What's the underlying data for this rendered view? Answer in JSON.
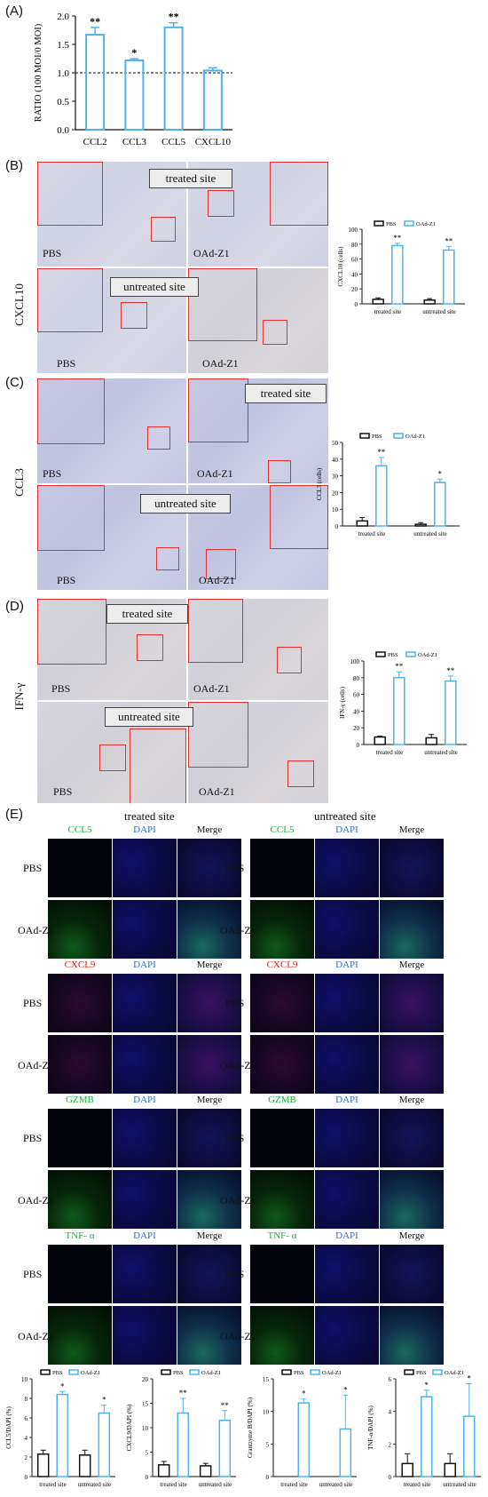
{
  "panels": {
    "A": "(A)",
    "B": "(B)",
    "C": "(C)",
    "D": "(D)",
    "E": "(E)"
  },
  "side_labels": {
    "B": "CXCL10",
    "C": "CCL3",
    "D": "IFN-γ"
  },
  "site_tags": {
    "treated": "treated site",
    "untreated": "untreated site"
  },
  "ihc_labels": {
    "pbs": "PBS",
    "oad": "OAd-Z1"
  },
  "section_e": {
    "treated_title": "treated site",
    "untreated_title": "untreated site",
    "row_pbs": "PBS",
    "row_oad": "OAd-Z1",
    "dapi": "DAPI",
    "merge": "Merge",
    "markers": [
      {
        "name": "CCL5",
        "color": "#1fae3e"
      },
      {
        "name": "CXCL9",
        "color": "#e01818"
      },
      {
        "name": "GZMB",
        "color": "#1fae3e"
      },
      {
        "name": "TNF- α",
        "color": "#1fae3e"
      }
    ],
    "dapi_color": "#2a6fd6"
  },
  "chart_data": [
    {
      "id": "A",
      "type": "bar",
      "categories": [
        "CCL2",
        "CCL3",
        "CCL5",
        "CXCL10"
      ],
      "values": [
        1.67,
        1.22,
        1.8,
        1.04
      ],
      "errors": [
        0.13,
        0.03,
        0.08,
        0.05
      ],
      "significance": [
        "**",
        "*",
        "**",
        ""
      ],
      "ylabel": "RATIO (100 MOI/0 MOI)",
      "ylim": [
        0.0,
        2.0
      ],
      "yticks": [
        "0.0",
        "0.5",
        "1.0",
        "1.5",
        "2.0"
      ],
      "reference_line": 1.0,
      "color": "#4fb3e8"
    },
    {
      "id": "B",
      "type": "bar",
      "categories": [
        "treated site",
        "untreated site"
      ],
      "series": [
        {
          "name": "PBS",
          "values": [
            6,
            5
          ],
          "errors": [
            2,
            2
          ],
          "color": "#111111"
        },
        {
          "name": "OAd-Z1",
          "values": [
            78,
            72
          ],
          "errors": [
            3,
            5
          ],
          "color": "#4fb3e8"
        }
      ],
      "significance": [
        "**",
        "**"
      ],
      "ylabel": "CXCL10 (cells)",
      "ylim": [
        0,
        100
      ],
      "yticks": [
        "0",
        "20",
        "40",
        "60",
        "80",
        "100"
      ]
    },
    {
      "id": "C",
      "type": "bar",
      "categories": [
        "treated site",
        "untreated site"
      ],
      "series": [
        {
          "name": "PBS",
          "values": [
            3,
            1
          ],
          "errors": [
            2,
            1
          ],
          "color": "#111111"
        },
        {
          "name": "OAd-Z1",
          "values": [
            36,
            26
          ],
          "errors": [
            5,
            2
          ],
          "color": "#4fb3e8"
        }
      ],
      "significance": [
        "**",
        "*"
      ],
      "ylabel": "CCL3 (cells)",
      "ylim": [
        0,
        50
      ],
      "yticks": [
        "0",
        "10",
        "20",
        "30",
        "40",
        "50"
      ]
    },
    {
      "id": "D",
      "type": "bar",
      "categories": [
        "treated site",
        "untreated site"
      ],
      "series": [
        {
          "name": "PBS",
          "values": [
            9,
            8
          ],
          "errors": [
            1,
            4
          ],
          "color": "#111111"
        },
        {
          "name": "OAd-Z1",
          "values": [
            80,
            76
          ],
          "errors": [
            7,
            6
          ],
          "color": "#4fb3e8"
        }
      ],
      "significance": [
        "**",
        "**"
      ],
      "ylabel": "IFN-γ (cells)",
      "ylim": [
        0,
        100
      ],
      "yticks": [
        "0",
        "20",
        "40",
        "60",
        "80",
        "100"
      ]
    },
    {
      "id": "E1",
      "type": "bar",
      "categories": [
        "treated site",
        "untreated site"
      ],
      "series": [
        {
          "name": "PBS",
          "values": [
            2.3,
            2.2
          ],
          "errors": [
            0.4,
            0.5
          ],
          "color": "#111111"
        },
        {
          "name": "OAd-Z1",
          "values": [
            8.4,
            6.5
          ],
          "errors": [
            0.3,
            0.8
          ],
          "color": "#4fb3e8"
        }
      ],
      "significance": [
        "*",
        "*"
      ],
      "ylabel": "CCL5/DAPI (%)",
      "ylim": [
        0,
        10
      ],
      "yticks": [
        "0",
        "2",
        "4",
        "6",
        "8",
        "10"
      ]
    },
    {
      "id": "E2",
      "type": "bar",
      "categories": [
        "treated site",
        "untreated site"
      ],
      "series": [
        {
          "name": "PBS",
          "values": [
            2.4,
            2.2
          ],
          "errors": [
            0.7,
            0.5
          ],
          "color": "#111111"
        },
        {
          "name": "OAd-Z1",
          "values": [
            13,
            11.5
          ],
          "errors": [
            3,
            2
          ],
          "color": "#4fb3e8"
        }
      ],
      "significance": [
        "**",
        "**"
      ],
      "ylabel": "CXCL9/DAPI (%)",
      "ylim": [
        0,
        20
      ],
      "yticks": [
        "0",
        "5",
        "10",
        "15",
        "20"
      ]
    },
    {
      "id": "E3",
      "type": "bar",
      "categories": [
        "treated site",
        "untreated site"
      ],
      "series": [
        {
          "name": "PBS",
          "values": [
            0,
            0
          ],
          "errors": [
            0,
            0
          ],
          "color": "#111111"
        },
        {
          "name": "OAd-Z1",
          "values": [
            11.3,
            7.3
          ],
          "errors": [
            0.6,
            5.2
          ],
          "color": "#4fb3e8"
        }
      ],
      "significance": [
        "*",
        "*"
      ],
      "ylabel": "Grantzyme B/DAPI (%)",
      "ylim": [
        0,
        15
      ],
      "yticks": [
        "0",
        "5",
        "10",
        "15"
      ]
    },
    {
      "id": "E4",
      "type": "bar",
      "categories": [
        "treated site",
        "untreated site"
      ],
      "series": [
        {
          "name": "PBS",
          "values": [
            0.8,
            0.8
          ],
          "errors": [
            0.6,
            0.6
          ],
          "color": "#111111"
        },
        {
          "name": "OAd-Z1",
          "values": [
            4.9,
            3.7
          ],
          "errors": [
            0.4,
            2.0
          ],
          "color": "#4fb3e8"
        }
      ],
      "significance": [
        "*",
        "*"
      ],
      "ylabel": "TNF-α/DAPI (%)",
      "ylim": [
        0,
        6
      ],
      "yticks": [
        "0",
        "2",
        "4",
        "6"
      ]
    }
  ]
}
